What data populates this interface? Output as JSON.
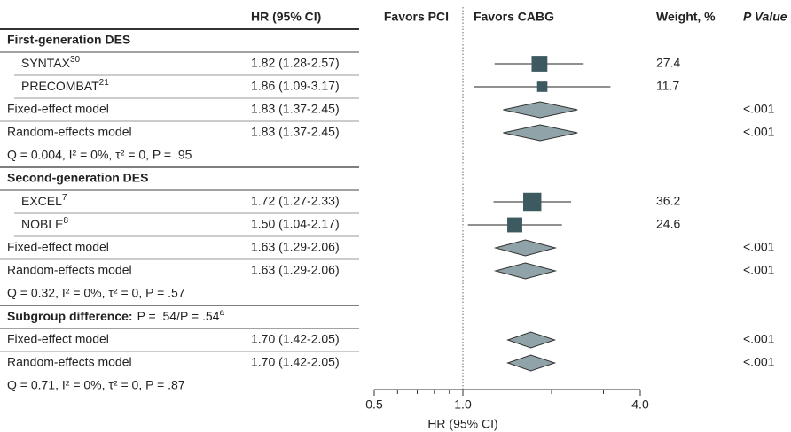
{
  "chart_data": {
    "type": "forest",
    "columns": {
      "hr": "HR (95% CI)",
      "favors_left": "Favors PCI",
      "favors_right": "Favors CABG",
      "weight": "Weight, %",
      "p": "P Value"
    },
    "x_label": "HR (95% CI)",
    "log_scale": true,
    "xlim": [
      0.5,
      4
    ],
    "xticks": [
      0.5,
      {
        "value": 1,
        "label": "1.0"
      },
      {
        "value": 4,
        "label": "4.0"
      }
    ],
    "minor_xticks": [
      0.6,
      0.7,
      0.8,
      0.9,
      2,
      3
    ],
    "reference": 1,
    "box_color": "#3d5a61",
    "diamond_color": "#8fa3a8",
    "rows": [
      {
        "kind": "heading",
        "name": "First-generation DES"
      },
      {
        "kind": "study",
        "name": "SYNTAX",
        "ref": "30",
        "label": "1.82 (1.28-2.57)",
        "hr": 1.82,
        "ci": [
          1.28,
          2.57
        ],
        "weight": 27.4
      },
      {
        "kind": "study",
        "name": "PRECOMBAT",
        "ref": "21",
        "label": "1.86 (1.09-3.17)",
        "hr": 1.86,
        "ci": [
          1.09,
          3.17
        ],
        "weight": 11.7
      },
      {
        "kind": "model",
        "name": "Fixed-effect model",
        "label": "1.83 (1.37-2.45)",
        "hr": 1.83,
        "ci": [
          1.37,
          2.45
        ],
        "p": "<.001"
      },
      {
        "kind": "model",
        "name": "Random-effects model",
        "label": "1.83 (1.37-2.45)",
        "hr": 1.83,
        "ci": [
          1.37,
          2.45
        ],
        "p": "<.001"
      },
      {
        "kind": "heterogeneity",
        "name": "Q = 0.004, I² = 0%, τ² = 0, P = .95"
      },
      {
        "kind": "heading",
        "name": "Second-generation DES"
      },
      {
        "kind": "study",
        "name": "EXCEL",
        "ref": "7",
        "label": "1.72 (1.27-2.33)",
        "hr": 1.72,
        "ci": [
          1.27,
          2.33
        ],
        "weight": 36.2
      },
      {
        "kind": "study",
        "name": "NOBLE",
        "ref": "8",
        "label": "1.50 (1.04-2.17)",
        "hr": 1.5,
        "ci": [
          1.04,
          2.17
        ],
        "weight": 24.6
      },
      {
        "kind": "model",
        "name": "Fixed-effect model",
        "label": "1.63 (1.29-2.06)",
        "hr": 1.63,
        "ci": [
          1.29,
          2.06
        ],
        "p": "<.001"
      },
      {
        "kind": "model",
        "name": "Random-effects model",
        "label": "1.63 (1.29-2.06)",
        "hr": 1.63,
        "ci": [
          1.29,
          2.06
        ],
        "p": "<.001"
      },
      {
        "kind": "heterogeneity",
        "name": "Q = 0.32, I² = 0%, τ² = 0, P = .57"
      },
      {
        "kind": "subgroup",
        "name": "Subgroup difference:",
        "text": "P = .54/P = .54",
        "note": "a"
      },
      {
        "kind": "model",
        "name": "Fixed-effect model",
        "label": "1.70 (1.42-2.05)",
        "hr": 1.7,
        "ci": [
          1.42,
          2.05
        ],
        "p": "<.001"
      },
      {
        "kind": "model",
        "name": "Random-effects model",
        "label": "1.70 (1.42-2.05)",
        "hr": 1.7,
        "ci": [
          1.42,
          2.05
        ],
        "p": "<.001"
      },
      {
        "kind": "heterogeneity",
        "name": "Q = 0.71, I² = 0%, τ² = 0, P = .87"
      }
    ]
  }
}
